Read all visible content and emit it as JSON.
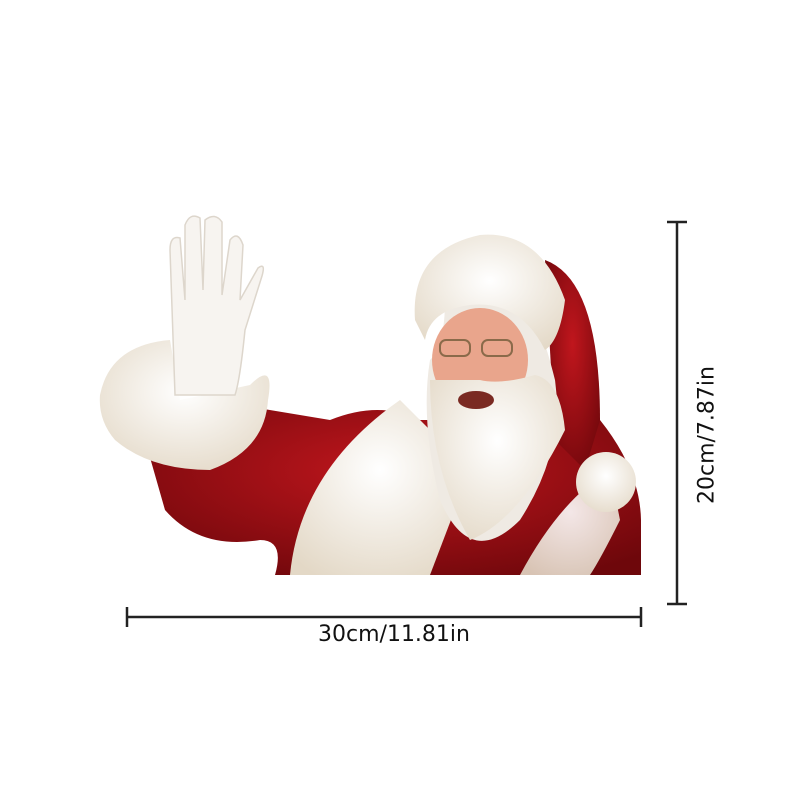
{
  "product": {
    "subject": "santa-claus-waving-sticker"
  },
  "dimensions": {
    "width_label": "30cm/11.81in",
    "height_label": "20cm/7.87in"
  },
  "colors": {
    "suit_red": "#8e0f14",
    "fur_white": "#f4efe6",
    "skin": "#e9a58c",
    "line": "#222222"
  }
}
